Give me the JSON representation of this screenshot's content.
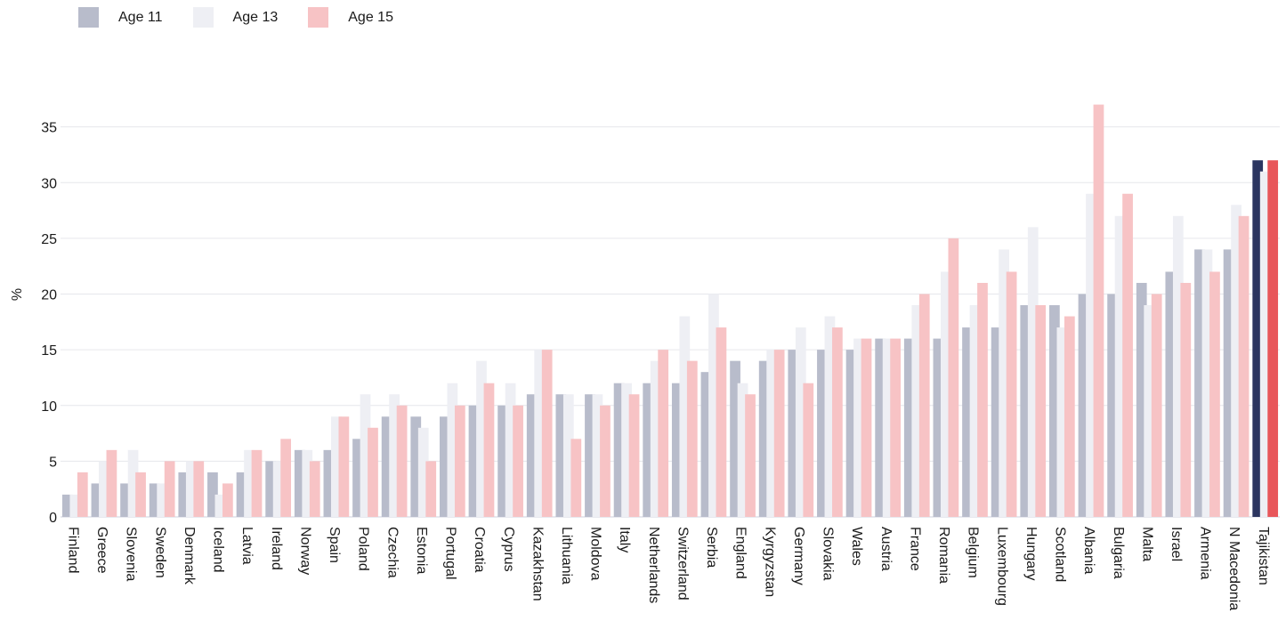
{
  "chart_data": {
    "type": "bar",
    "ylabel": "%",
    "ylim": [
      0,
      40
    ],
    "yticks": [
      0,
      5,
      10,
      15,
      20,
      25,
      30,
      35
    ],
    "grid": true,
    "legend_position": "top-left",
    "categories": [
      "Finland",
      "Greece",
      "Slovenia",
      "Sweden",
      "Denmark",
      "Iceland",
      "Latvia",
      "Ireland",
      "Norway",
      "Spain",
      "Poland",
      "Czechia",
      "Estonia",
      "Portugal",
      "Croatia",
      "Cyprus",
      "Kazakhstan",
      "Lithuania",
      "Moldova",
      "Italy",
      "Netherlands",
      "Switzerland",
      "Serbia",
      "England",
      "Kyrgyzstan",
      "Germany",
      "Slovakia",
      "Wales",
      "Austria",
      "France",
      "Romania",
      "Belgium",
      "Luxembourg",
      "Hungary",
      "Scotland",
      "Albania",
      "Bulgaria",
      "Malta",
      "Israel",
      "Armenia",
      "N Macedonia",
      "Tajikistan"
    ],
    "highlight": "Tajikistan",
    "series": [
      {
        "name": "Age 11",
        "color": "#b8bccb",
        "highlight_color": "#2b3560",
        "values": [
          2,
          3,
          3,
          3,
          4,
          4,
          4,
          5,
          6,
          6,
          7,
          9,
          9,
          9,
          10,
          10,
          11,
          11,
          11,
          12,
          12,
          12,
          13,
          14,
          14,
          15,
          15,
          15,
          16,
          16,
          16,
          17,
          17,
          19,
          19,
          20,
          20,
          21,
          22,
          24,
          24,
          32
        ]
      },
      {
        "name": "Age 13",
        "color": "#eeeff4",
        "highlight_color": "#eeeff4",
        "values": [
          2,
          5,
          6,
          3,
          5,
          2,
          6,
          5,
          6,
          9,
          11,
          11,
          8,
          12,
          14,
          12,
          15,
          11,
          11,
          12,
          14,
          18,
          20,
          12,
          15,
          17,
          18,
          16,
          16,
          19,
          22,
          19,
          24,
          26,
          17,
          29,
          27,
          19,
          27,
          24,
          28,
          31
        ]
      },
      {
        "name": "Age 15",
        "color": "#f7c3c5",
        "highlight_color": "#e8565a",
        "values": [
          4,
          6,
          4,
          5,
          5,
          3,
          6,
          7,
          5,
          9,
          8,
          10,
          5,
          10,
          12,
          10,
          15,
          7,
          10,
          11,
          15,
          14,
          17,
          11,
          15,
          12,
          17,
          16,
          16,
          20,
          25,
          21,
          22,
          19,
          18,
          37,
          29,
          20,
          21,
          22,
          27,
          32
        ]
      }
    ]
  }
}
